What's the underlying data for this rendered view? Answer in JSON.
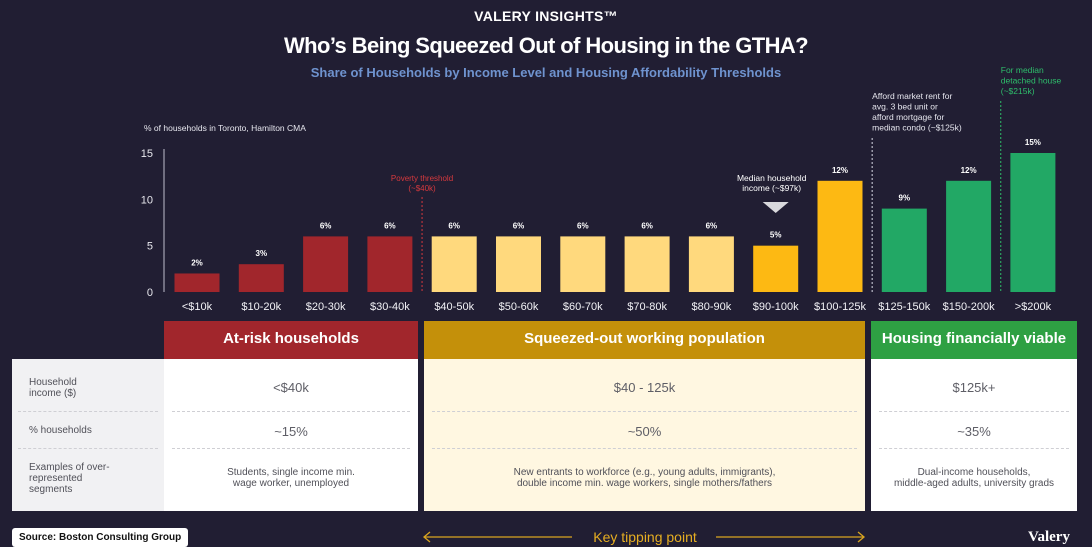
{
  "brand": "VALERY INSIGHTS™",
  "title": "Who’s Being Squeezed Out of Housing in the GTHA?",
  "subtitle": "Share of Households by Income Level and Housing Affordability Thresholds",
  "chart_data": {
    "type": "bar",
    "ylabel": "% of households in Toronto, Hamilton CMA",
    "ylim": [
      0,
      15
    ],
    "yticks": [
      0,
      5,
      10,
      15
    ],
    "categories": [
      "<$10k",
      "$10-20k",
      "$20-30k",
      "$30-40k",
      "$40-50k",
      "$50-60k",
      "$60-70k",
      "$70-80k",
      "$80-90k",
      "$90-100k",
      "$100-125k",
      "$125-150k",
      "$150-200k",
      ">$200k"
    ],
    "values": [
      2,
      3,
      6,
      6,
      6,
      6,
      6,
      6,
      6,
      5,
      12,
      9,
      12,
      15
    ],
    "data_labels": [
      "2%",
      "3%",
      "6%",
      "6%",
      "6%",
      "6%",
      "6%",
      "6%",
      "6%",
      "5%",
      "12%",
      "9%",
      "12%",
      "15%"
    ],
    "bar_colors": [
      "#a1262c",
      "#a1262c",
      "#a1262c",
      "#a1262c",
      "#ffd97d",
      "#ffd97d",
      "#ffd97d",
      "#ffd97d",
      "#ffd97d",
      "#fdb913",
      "#fdb913",
      "#22a865",
      "#22a865",
      "#22a865"
    ],
    "annotations": {
      "poverty": [
        "Poverty threshold",
        "(~$40k)"
      ],
      "median": [
        "Median household",
        "income (~$97k)"
      ],
      "rent": [
        "Afford market rent for",
        "avg. 3 bed unit or",
        "afford mortgage for",
        "median condo (~$125k)"
      ],
      "detached": [
        "For median",
        "detached house",
        "(~$215k)"
      ]
    }
  },
  "colors": {
    "red": "#a1262c",
    "gold": "#c4900a",
    "green": "#2ea043",
    "poverty": "#d6393e",
    "green_text": "#2ebd6b"
  },
  "table": {
    "row_labels": [
      "Household income ($)",
      "% households",
      "Examples of over-represented segments"
    ],
    "groups": [
      {
        "header": "At-risk households",
        "income": "<$40k",
        "pct": "~15%",
        "examples": [
          "Students, single income min.",
          "wage worker, unemployed"
        ]
      },
      {
        "header": "Squeezed-out working population",
        "income": "$40 - 125k",
        "pct": "~50%",
        "examples": [
          "New entrants to workforce (e.g., young adults, immigrants),",
          "double income min. wage workers, single mothers/fathers"
        ]
      },
      {
        "header": "Housing financially viable",
        "income": "$125k+",
        "pct": "~35%",
        "examples": [
          "Dual-income households,",
          "middle-aged adults, university grads"
        ]
      }
    ]
  },
  "source": "Source: Boston Consulting Group",
  "tipping": "Key tipping point",
  "logo": "Valery"
}
